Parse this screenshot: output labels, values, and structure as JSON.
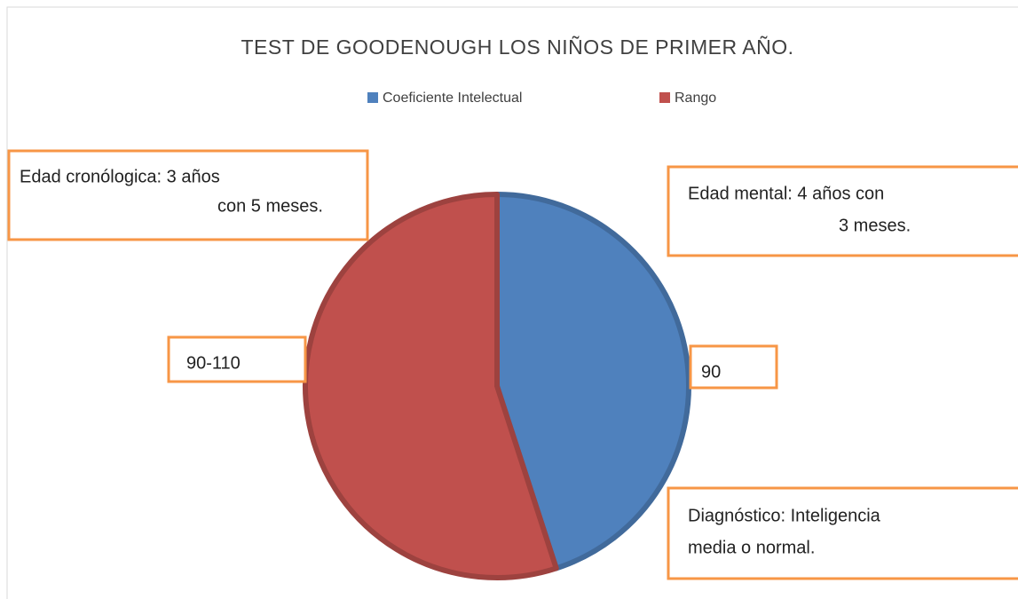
{
  "chart_data": {
    "type": "pie",
    "title": "TEST DE GOODENOUGH LOS NIÑOS DE PRIMER AÑO.",
    "categories": [
      "Coeficiente Intelectual",
      "Rango"
    ],
    "values": [
      90,
      110
    ],
    "value_labels": [
      "90",
      "90-110"
    ],
    "colors": [
      "#4f81bd",
      "#c0504d"
    ],
    "legend": "top",
    "annotations": [
      {
        "lines": [
          "Edad cronólogica: 3 años",
          "con 5 meses."
        ]
      },
      {
        "lines": [
          "Edad mental: 4 años con",
          "3 meses."
        ]
      },
      {
        "lines": [
          "Diagnóstico: Inteligencia",
          "media o normal."
        ]
      }
    ]
  }
}
